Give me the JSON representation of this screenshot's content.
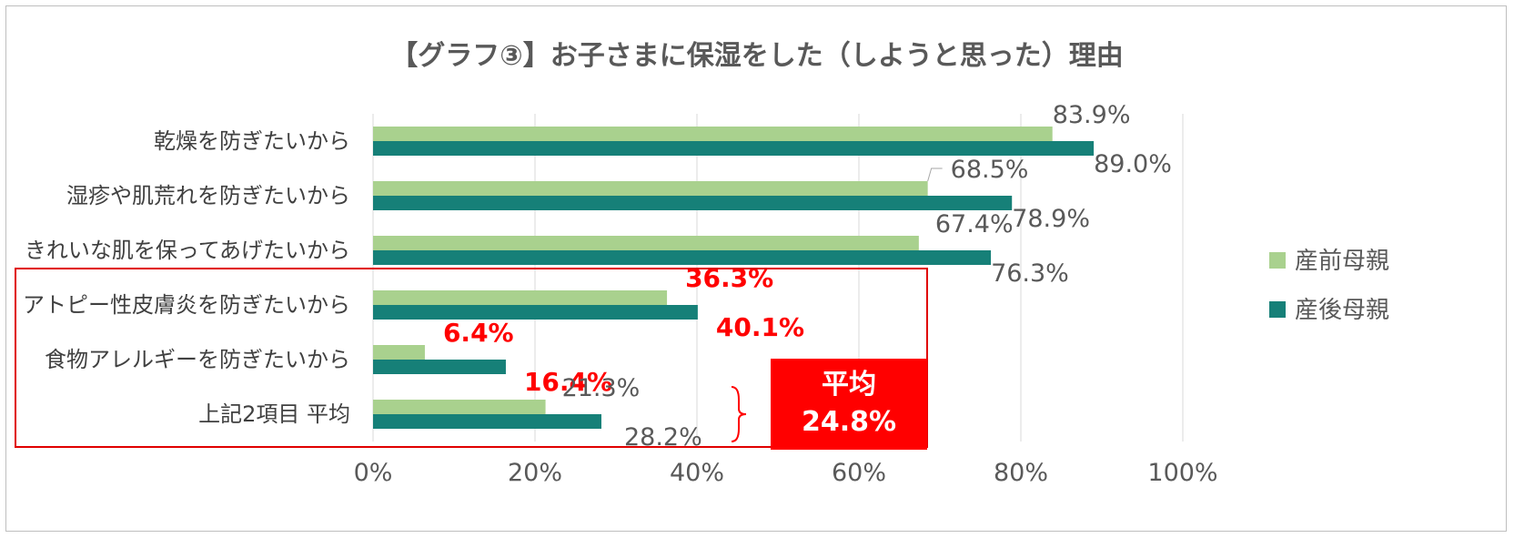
{
  "chart_data": {
    "type": "bar",
    "orientation": "horizontal",
    "title": "【グラフ③】お子さまに保湿をした（しようと思った）理由",
    "categories": [
      "乾燥を防ぎたいから",
      "湿疹や肌荒れを防ぎたいから",
      "きれいな肌を保ってあげたいから",
      "アトピー性皮膚炎を防ぎたいから",
      "食物アレルギーを防ぎたいから",
      "上記2項目 平均"
    ],
    "series": [
      {
        "name": "産前母親",
        "color": "#a9d18e",
        "values": [
          83.9,
          68.5,
          67.4,
          36.3,
          6.4,
          21.3
        ],
        "labels": [
          "83.9%",
          "68.5%",
          "67.4%",
          "36.3%",
          "6.4%",
          "21.3%"
        ]
      },
      {
        "name": "産後母親",
        "color": "#168078",
        "values": [
          89.0,
          78.9,
          76.3,
          40.1,
          16.4,
          28.2
        ],
        "labels": [
          "89.0%",
          "78.9%",
          "76.3%",
          "40.1%",
          "16.4%",
          "28.2%"
        ]
      }
    ],
    "highlighted_categories": [
      3,
      4
    ],
    "xlim": [
      0,
      100
    ],
    "xticks": [
      0,
      20,
      40,
      60,
      80,
      100
    ],
    "xtick_labels": [
      "0%",
      "20%",
      "40%",
      "60%",
      "80%",
      "100%"
    ],
    "grid": true,
    "legend_position": "right",
    "callout": {
      "label": "平均",
      "value": "24.8%"
    },
    "colors": {
      "highlight": "#ff0000",
      "box_border": "#e00000",
      "grid": "#d9d9d9"
    }
  }
}
